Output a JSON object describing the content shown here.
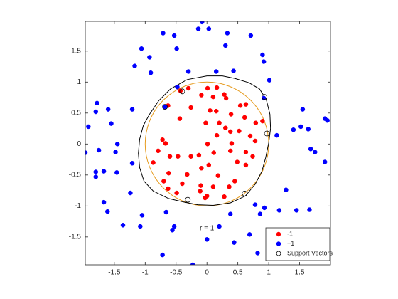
{
  "chart_data": {
    "type": "scatter",
    "annotation": "r = 1",
    "annotation_at": [
      0,
      -1.36
    ],
    "xlim": [
      -1.97,
      2.0
    ],
    "ylim": [
      -1.95,
      1.98
    ],
    "xticks": [
      -1.5,
      -1,
      -0.5,
      0,
      0.5,
      1,
      1.5
    ],
    "yticks": [
      -1.5,
      -1,
      -0.5,
      0,
      0.5,
      1,
      1.5
    ],
    "legend": "lower right",
    "circle": {
      "radius": 1,
      "color": "#e69b1e"
    },
    "contour": {
      "color": "#000000",
      "x": [
        0,
        0.25,
        0.45,
        0.68,
        0.85,
        0.96,
        1.02,
        1.03,
        1.0,
        0.95,
        0.89,
        0.78,
        0.62,
        0.38,
        0.1,
        -0.15,
        -0.36,
        -0.62,
        -0.87,
        -1.02,
        -1.09,
        -1.11,
        -1.09,
        -1.03,
        -0.93,
        -0.78,
        -0.59,
        -0.32,
        0
      ],
      "y": [
        1.1,
        1.1,
        1.06,
        0.99,
        0.89,
        0.72,
        0.48,
        0.25,
        0.02,
        -0.22,
        -0.44,
        -0.65,
        -0.84,
        -0.95,
        -0.99,
        -0.98,
        -0.94,
        -0.88,
        -0.76,
        -0.6,
        -0.38,
        -0.15,
        0.08,
        0.3,
        0.48,
        0.7,
        0.89,
        1.04,
        1.1
      ]
    },
    "series": [
      {
        "name": "-1",
        "color": "#ff0000",
        "x": [
          -0.3,
          0.01,
          0.16,
          -0.43,
          -0.09,
          0.1,
          0.28,
          0.31,
          0.54,
          0.63,
          0.05,
          0.15,
          -0.26,
          -0.63,
          0.39,
          0.79,
          0.9,
          -0.44,
          -0.02,
          0.2,
          0.61,
          0.3,
          0.38,
          0.52,
          0.7,
          0.16,
          -0.72,
          -0.67,
          0.01,
          0.4,
          0.78,
          -0.79,
          -0.6,
          -0.47,
          -0.26,
          -0.13,
          0.11,
          0.38,
          0.63,
          0.74,
          -0.87,
          -0.09,
          0.03,
          0.49,
          0.63,
          -0.62,
          -0.32,
          0.18,
          0.45,
          -0.7,
          -0.4,
          -0.1,
          0.1,
          0.36,
          -0.63,
          0.0,
          0.28,
          -0.49,
          -0.03,
          -0.11
        ],
        "y": [
          0.9,
          0.9,
          0.91,
          0.86,
          0.79,
          0.76,
          0.8,
          0.74,
          0.62,
          0.64,
          0.54,
          0.53,
          0.59,
          0.62,
          0.48,
          0.34,
          0.37,
          0.41,
          0.34,
          0.34,
          0.43,
          0.26,
          0.2,
          0.21,
          0.13,
          0.14,
          0.07,
          0.01,
          0.0,
          0.01,
          0.05,
          -0.11,
          -0.2,
          -0.2,
          -0.2,
          -0.18,
          -0.14,
          -0.11,
          -0.13,
          -0.2,
          -0.3,
          -0.39,
          -0.34,
          -0.29,
          -0.34,
          -0.47,
          -0.49,
          -0.51,
          -0.6,
          -0.6,
          -0.64,
          -0.67,
          -0.69,
          -0.69,
          -0.72,
          -0.84,
          -0.85,
          -0.79,
          -0.87,
          -0.76
        ]
      },
      {
        "name": "+1",
        "color": "#0000ff",
        "x": [
          -0.08,
          0.03,
          -0.14,
          -0.71,
          0.33,
          -0.53,
          0.71,
          0.3,
          -1.06,
          -0.49,
          0.9,
          0.92,
          -0.93,
          -1.17,
          -0.91,
          -0.3,
          0.15,
          0.43,
          1.01,
          -0.48,
          0.92,
          -1.78,
          -1.8,
          -1.6,
          -1.21,
          1.55,
          1.91,
          1.95,
          -1.92,
          -1.55,
          1.4,
          1.52,
          1.64,
          1.13,
          -1.45,
          -1.97,
          -1.75,
          -1.48,
          1.68,
          1.75,
          -1.21,
          1.91,
          -1.8,
          -1.67,
          -1.46,
          -1.8,
          -1.24,
          1.28,
          0.78,
          0.93,
          -1.67,
          -1.61,
          1.45,
          1.66,
          -0.66,
          0.38,
          -1.05,
          1.17,
          0.86,
          -1.36,
          -1.08,
          -0.53,
          0.2,
          -0.56,
          0.69,
          0.0,
          0.44,
          -0.72,
          0.82,
          -0.23,
          -0.68
        ],
        "y": [
          1.97,
          1.86,
          1.86,
          1.79,
          1.79,
          1.75,
          1.75,
          1.59,
          1.54,
          1.54,
          1.44,
          1.33,
          1.4,
          1.26,
          1.15,
          1.17,
          1.17,
          1.18,
          1.03,
          0.92,
          0.74,
          0.66,
          0.52,
          0.56,
          0.56,
          0.56,
          0.41,
          0.38,
          0.28,
          0.33,
          0.23,
          0.28,
          0.24,
          0.14,
          0.0,
          -0.14,
          -0.1,
          -0.13,
          -0.08,
          -0.13,
          -0.31,
          -0.29,
          -0.45,
          -0.44,
          -0.46,
          -0.53,
          -0.79,
          -0.74,
          -0.98,
          -1.03,
          -0.94,
          -1.09,
          -1.07,
          -1.06,
          -1.1,
          -1.13,
          -1.15,
          -1.07,
          -1.13,
          -1.31,
          -1.33,
          -1.33,
          -1.33,
          -1.39,
          -1.46,
          -1.54,
          -1.59,
          -1.79,
          -1.76,
          -1.95,
          0.6
        ]
      },
      {
        "name": "Support Vectors",
        "color": "#000000",
        "x": [
          -0.4,
          -0.68,
          0.93,
          0.97,
          -0.31,
          0.61
        ],
        "y": [
          0.85,
          0.6,
          0.76,
          0.17,
          -0.9,
          -0.8
        ]
      }
    ]
  }
}
